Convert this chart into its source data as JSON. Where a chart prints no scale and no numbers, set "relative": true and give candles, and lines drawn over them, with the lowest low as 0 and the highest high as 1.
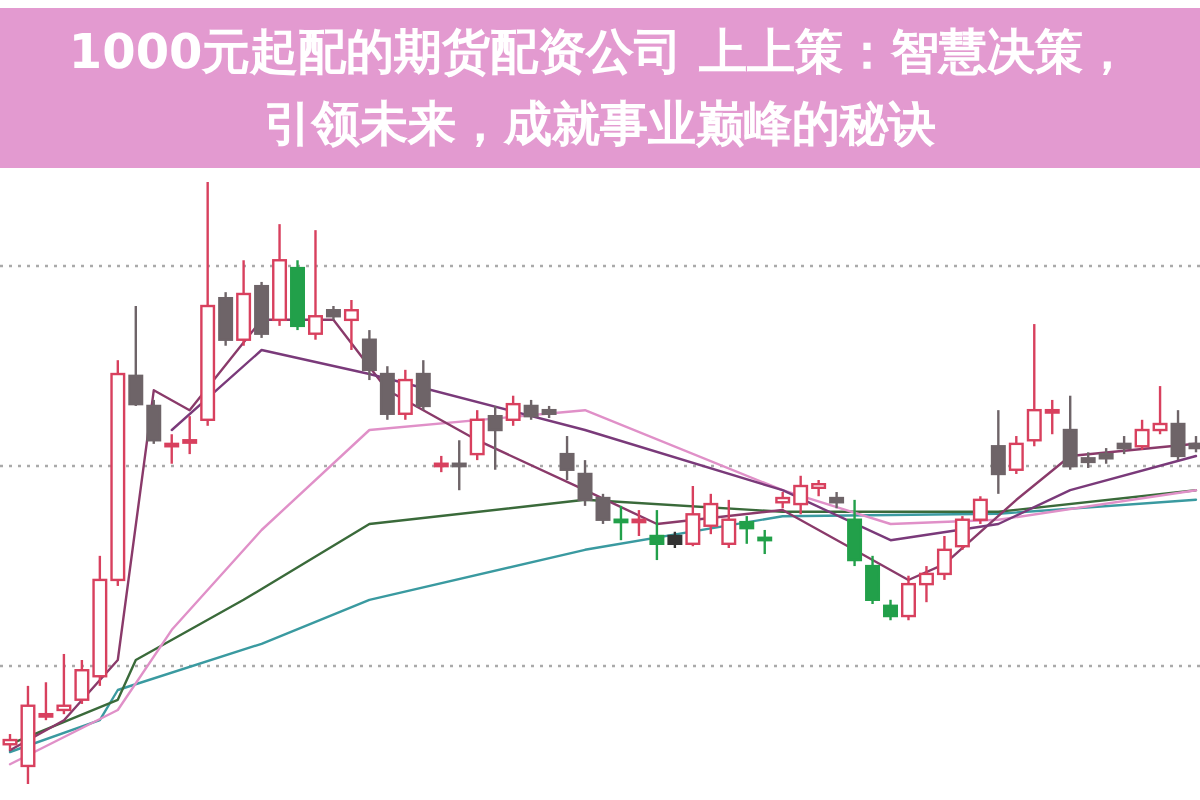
{
  "chart_data": {
    "type": "candlestick",
    "title": "1000元起配的期货配资公司 上上策：智慧决策，引领未来，成就事业巅峰的秘诀",
    "relative": true,
    "grid": true,
    "categories": [
      null,
      null,
      null,
      null,
      null,
      null,
      null,
      null,
      null,
      null,
      null,
      null,
      null,
      null,
      null,
      null,
      null,
      null,
      null,
      null,
      null,
      null,
      null,
      null,
      null,
      null,
      null,
      null,
      null,
      null,
      null,
      null,
      null,
      null,
      null,
      null,
      null,
      null,
      null,
      null,
      null,
      null,
      null,
      null,
      null,
      null,
      null,
      null,
      null,
      null,
      null,
      null,
      null,
      null,
      null,
      null,
      null,
      null,
      null,
      null,
      null,
      null,
      null,
      null,
      null,
      null,
      null
    ],
    "ohlc": [
      [
        0.066,
        0.083,
        0.056,
        0.073
      ],
      [
        0.03,
        0.163,
        0,
        0.13
      ],
      [
        0.116,
        0.169,
        0.106,
        0.116
      ],
      [
        0.123,
        0.216,
        0.116,
        0.13
      ],
      [
        0.14,
        0.206,
        0.133,
        0.189
      ],
      [
        0.179,
        0.379,
        0.163,
        0.339
      ],
      [
        0.339,
        0.704,
        0.329,
        0.681
      ],
      [
        0.678,
        0.794,
        0.628,
        0.631
      ],
      [
        0.628,
        0.638,
        0.565,
        0.571
      ],
      [
        0.565,
        0.581,
        0.532,
        0.565
      ],
      [
        0.571,
        0.611,
        0.548,
        0.571
      ],
      [
        0.605,
        1,
        0.595,
        0.794
      ],
      [
        0.807,
        0.817,
        0.728,
        0.738
      ],
      [
        0.738,
        0.87,
        0.728,
        0.814
      ],
      [
        0.827,
        0.834,
        0.741,
        0.748
      ],
      [
        0.771,
        0.93,
        0.761,
        0.87
      ],
      [
        0.857,
        0.87,
        0.754,
        0.761
      ],
      [
        0.748,
        0.92,
        0.738,
        0.777
      ],
      [
        0.787,
        0.794,
        0.771,
        0.777
      ],
      [
        0.771,
        0.804,
        0.721,
        0.787
      ],
      [
        0.738,
        0.754,
        0.671,
        0.688
      ],
      [
        0.681,
        0.694,
        0.605,
        0.615
      ],
      [
        0.615,
        0.688,
        0.605,
        0.671
      ],
      [
        0.681,
        0.704,
        0.621,
        0.628
      ],
      [
        0.528,
        0.545,
        0.518,
        0.532
      ],
      [
        0.532,
        0.571,
        0.488,
        0.528
      ],
      [
        0.548,
        0.621,
        0.538,
        0.605
      ],
      [
        0.611,
        0.628,
        0.522,
        0.588
      ],
      [
        0.605,
        0.645,
        0.595,
        0.631
      ],
      [
        0.628,
        0.638,
        0.605,
        0.611
      ],
      [
        0.621,
        0.628,
        0.608,
        0.615
      ],
      [
        0.548,
        0.578,
        0.505,
        0.522
      ],
      [
        0.515,
        0.538,
        0.462,
        0.472
      ],
      [
        0.475,
        0.482,
        0.432,
        0.439
      ],
      [
        0.439,
        0.462,
        0.405,
        0.435
      ],
      [
        0.435,
        0.455,
        0.412,
        0.439
      ],
      [
        0.412,
        0.455,
        0.372,
        0.399
      ],
      [
        0.412,
        0.419,
        0.392,
        0.399
      ],
      [
        0.399,
        0.495,
        0.395,
        0.448
      ],
      [
        0.429,
        0.482,
        0.415,
        0.465
      ],
      [
        0.399,
        0.472,
        0.392,
        0.439
      ],
      [
        0.435,
        0.445,
        0.399,
        0.425
      ],
      [
        0.409,
        0.422,
        0.382,
        0.405
      ],
      [
        0.468,
        0.485,
        0.458,
        0.475
      ],
      [
        0.465,
        0.512,
        0.448,
        0.495
      ],
      [
        0.492,
        0.505,
        0.478,
        0.498
      ],
      [
        0.475,
        0.485,
        0.458,
        0.468
      ],
      [
        0.439,
        0.472,
        0.362,
        0.372
      ],
      [
        0.362,
        0.379,
        0.299,
        0.306
      ],
      [
        0.296,
        0.306,
        0.272,
        0.279
      ],
      [
        0.279,
        0.346,
        0.272,
        0.332
      ],
      [
        0.332,
        0.362,
        0.302,
        0.349
      ],
      [
        0.349,
        0.412,
        0.339,
        0.389
      ],
      [
        0.395,
        0.445,
        0.389,
        0.439
      ],
      [
        0.439,
        0.478,
        0.432,
        0.472
      ],
      [
        0.561,
        0.621,
        0.482,
        0.515
      ],
      [
        0.522,
        0.578,
        0.515,
        0.565
      ],
      [
        0.571,
        0.764,
        0.561,
        0.621
      ],
      [
        0.621,
        0.638,
        0.581,
        0.621
      ],
      [
        0.588,
        0.645,
        0.522,
        0.528
      ],
      [
        0.541,
        0.551,
        0.525,
        0.535
      ],
      [
        0.548,
        0.558,
        0.532,
        0.541
      ],
      [
        0.565,
        0.578,
        0.548,
        0.558
      ],
      [
        0.561,
        0.605,
        0.555,
        0.588
      ],
      [
        0.588,
        0.661,
        0.581,
        0.598
      ],
      [
        0.598,
        0.621,
        0.538,
        0.545
      ],
      [
        0.565,
        0.578,
        0.551,
        0.558
      ]
    ],
    "colors": [
      "#d8405e",
      "#d8405e",
      "#d8405e",
      "#d8405e",
      "#d8405e",
      "#d8405e",
      "#d8405e",
      "#6e6468",
      "#6e6468",
      "#d8405e",
      "#d8405e",
      "#d8405e",
      "#6e6468",
      "#d8405e",
      "#6e6468",
      "#d8405e",
      "#22a04a",
      "#d8405e",
      "#6e6468",
      "#d8405e",
      "#6e6468",
      "#6e6468",
      "#d8405e",
      "#6e6468",
      "#d8405e",
      "#6e6468",
      "#d8405e",
      "#6e6468",
      "#d8405e",
      "#6e6468",
      "#6e6468",
      "#6e6468",
      "#6e6468",
      "#6e6468",
      "#22a04a",
      "#d8405e",
      "#22a04a",
      "#333333",
      "#d8405e",
      "#d8405e",
      "#d8405e",
      "#22a04a",
      "#22a04a",
      "#d8405e",
      "#d8405e",
      "#d8405e",
      "#6e6468",
      "#22a04a",
      "#22a04a",
      "#22a04a",
      "#d8405e",
      "#d8405e",
      "#d8405e",
      "#d8405e",
      "#d8405e",
      "#6e6468",
      "#d8405e",
      "#d8405e",
      "#d8405e",
      "#6e6468",
      "#6e6468",
      "#6e6468",
      "#6e6468",
      "#d8405e",
      "#d8405e",
      "#6e6468",
      "#6e6468"
    ],
    "series": [
      {
        "type": "line",
        "color": "#3a9aa0",
        "values": [
          0.053,
          null,
          null,
          null,
          null,
          0.106,
          0.156,
          null,
          null,
          null,
          null,
          null,
          null,
          null,
          0.233,
          null,
          null,
          null,
          null,
          null,
          0.306,
          null,
          null,
          null,
          null,
          null,
          null,
          null,
          null,
          null,
          null,
          null,
          0.389,
          null,
          null,
          null,
          null,
          null,
          null,
          null,
          null,
          null,
          null,
          0.445,
          null,
          null,
          null,
          null,
          null,
          null,
          null,
          null,
          null,
          null,
          null,
          0.449,
          null,
          null,
          null,
          null,
          null,
          null,
          null,
          null,
          null,
          null,
          0.472
        ]
      },
      {
        "type": "line",
        "color": "#3a6a3a",
        "values": [
          0.066,
          null,
          null,
          null,
          null,
          null,
          0.14,
          0.206,
          null,
          null,
          null,
          null,
          null,
          0.306,
          null,
          null,
          null,
          null,
          null,
          null,
          0.432,
          null,
          null,
          null,
          null,
          null,
          null,
          null,
          null,
          null,
          null,
          null,
          0.472,
          null,
          null,
          null,
          null,
          null,
          null,
          null,
          null,
          null,
          null,
          0.452,
          null,
          null,
          null,
          null,
          null,
          null,
          null,
          null,
          null,
          null,
          null,
          0.452,
          null,
          null,
          null,
          null,
          null,
          null,
          null,
          null,
          null,
          null,
          0.488
        ]
      },
      {
        "type": "line",
        "color": "#e090c8",
        "values": [
          0.033,
          null,
          null,
          null,
          null,
          null,
          0.123,
          null,
          null,
          0.256,
          null,
          null,
          null,
          null,
          0.422,
          null,
          null,
          null,
          null,
          null,
          0.588,
          null,
          null,
          null,
          null,
          null,
          null,
          null,
          null,
          null,
          null,
          null,
          0.621,
          null,
          null,
          null,
          null,
          null,
          null,
          null,
          null,
          null,
          null,
          0.488,
          null,
          null,
          null,
          null,
          null,
          0.432,
          null,
          null,
          null,
          null,
          null,
          0.439,
          null,
          null,
          null,
          null,
          null,
          null,
          null,
          null,
          null,
          null,
          0.488
        ]
      },
      {
        "type": "line",
        "color": "#8a3a6a",
        "values": [
          0.056,
          null,
          null,
          0.106,
          null,
          null,
          0.206,
          null,
          0.654,
          null,
          0.621,
          null,
          null,
          null,
          0.771,
          null,
          null,
          null,
          0.771,
          null,
          null,
          0.654,
          null,
          null,
          null,
          null,
          0.571,
          null,
          null,
          null,
          null,
          null,
          0.488,
          null,
          null,
          null,
          0.432,
          null,
          null,
          null,
          null,
          null,
          null,
          0.455,
          null,
          null,
          null,
          null,
          0.372,
          null,
          0.339,
          null,
          0.365,
          null,
          null,
          null,
          0.472,
          null,
          null,
          0.545,
          null,
          null,
          null,
          null,
          null,
          null,
          0.565
        ]
      },
      {
        "type": "line",
        "color": "#7a3a7a",
        "values": [
          null,
          null,
          null,
          null,
          null,
          null,
          null,
          null,
          null,
          0.588,
          null,
          null,
          null,
          null,
          0.721,
          null,
          null,
          null,
          null,
          null,
          0.681,
          null,
          null,
          null,
          null,
          null,
          null,
          null,
          null,
          null,
          null,
          null,
          0.588,
          null,
          null,
          null,
          null,
          null,
          null,
          null,
          null,
          null,
          null,
          0.488,
          null,
          null,
          null,
          null,
          null,
          0.405,
          null,
          null,
          null,
          null,
          null,
          0.432,
          null,
          null,
          null,
          0.488,
          null,
          null,
          null,
          null,
          null,
          null,
          0.545
        ]
      }
    ]
  }
}
